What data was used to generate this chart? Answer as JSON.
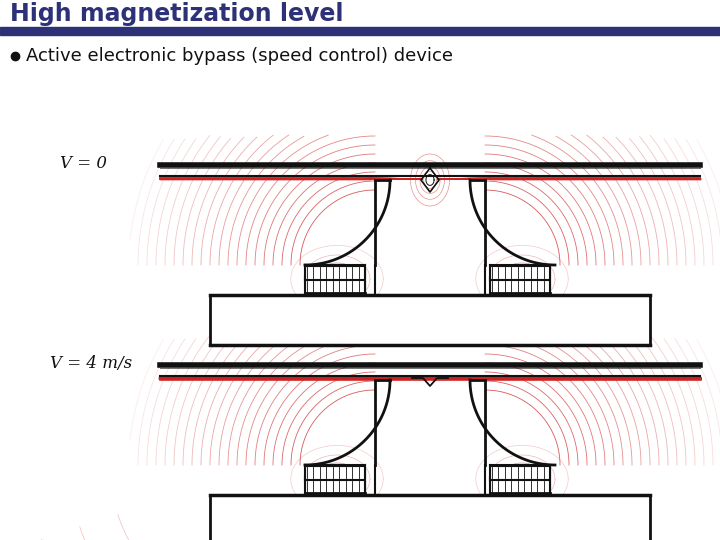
{
  "title": "High magnetization level",
  "title_color": "#2d3278",
  "header_bar_color": "#2d3278",
  "bullet_text": "Active electronic bypass (speed control) device",
  "label1": "V = 0",
  "label2": "V = 4 m/s",
  "bg_color": "#ffffff",
  "lc": "#cc2222",
  "sc": "#111111",
  "fig_width": 7.2,
  "fig_height": 5.4
}
